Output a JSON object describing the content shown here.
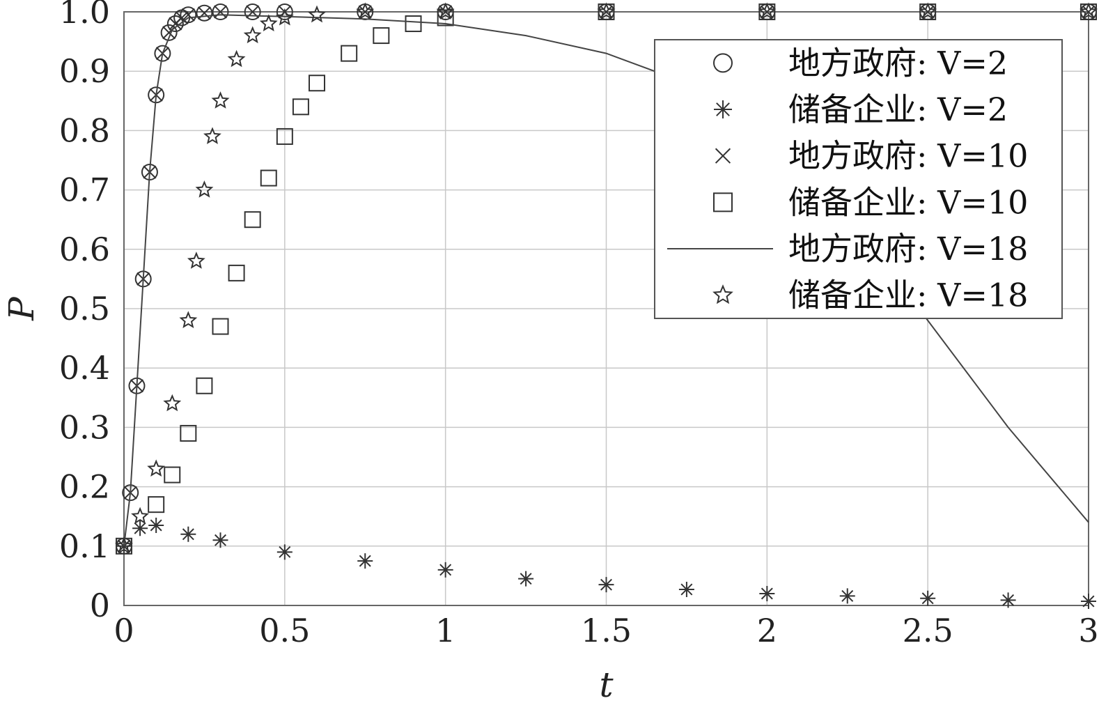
{
  "chart_data": {
    "type": "scatter",
    "xlabel": "t",
    "ylabel": "P",
    "xlim": [
      0,
      3
    ],
    "ylim": [
      0,
      1.0
    ],
    "xticks": [
      0,
      0.5,
      1,
      1.5,
      2,
      2.5,
      3
    ],
    "xtick_labels": [
      "0",
      "0.5",
      "1",
      "1.5",
      "2",
      "2.5",
      "3"
    ],
    "yticks": [
      0,
      0.1,
      0.2,
      0.3,
      0.4,
      0.5,
      0.6,
      0.7,
      0.8,
      0.9,
      1.0
    ],
    "ytick_labels": [
      "0",
      "0.1",
      "0.2",
      "0.3",
      "0.4",
      "0.5",
      "0.6",
      "0.7",
      "0.8",
      "0.9",
      "1.0"
    ],
    "grid": true,
    "legend_position": "top-right",
    "series": [
      {
        "name": "地方政府: V=2",
        "marker": "circle",
        "x": [
          0,
          0.02,
          0.04,
          0.06,
          0.08,
          0.1,
          0.12,
          0.14,
          0.16,
          0.18,
          0.2,
          0.25,
          0.3,
          0.4,
          0.5,
          0.75,
          1.0,
          1.5,
          2.0,
          2.5,
          3.0
        ],
        "y": [
          0.1,
          0.19,
          0.37,
          0.55,
          0.73,
          0.86,
          0.93,
          0.965,
          0.98,
          0.99,
          0.995,
          0.998,
          1.0,
          1.0,
          1.0,
          1.0,
          1.0,
          1.0,
          1.0,
          1.0,
          1.0
        ]
      },
      {
        "name": "储备企业: V=2",
        "marker": "asterisk",
        "x": [
          0,
          0.05,
          0.1,
          0.2,
          0.3,
          0.5,
          0.75,
          1.0,
          1.25,
          1.5,
          1.75,
          2.0,
          2.25,
          2.5,
          2.75,
          3.0
        ],
        "y": [
          0.1,
          0.13,
          0.135,
          0.12,
          0.11,
          0.09,
          0.075,
          0.06,
          0.045,
          0.035,
          0.027,
          0.02,
          0.016,
          0.012,
          0.009,
          0.007
        ]
      },
      {
        "name": "地方政府: V=10",
        "marker": "x",
        "x": [
          0,
          0.02,
          0.04,
          0.06,
          0.08,
          0.1,
          0.12,
          0.14,
          0.16,
          0.18,
          0.2,
          0.25,
          0.3,
          0.4,
          0.5,
          0.75,
          1.0,
          1.5,
          2.0,
          2.5,
          3.0
        ],
        "y": [
          0.1,
          0.19,
          0.37,
          0.55,
          0.73,
          0.86,
          0.93,
          0.965,
          0.98,
          0.99,
          0.995,
          0.998,
          1.0,
          1.0,
          1.0,
          1.0,
          1.0,
          1.0,
          1.0,
          1.0,
          1.0
        ]
      },
      {
        "name": "储备企业: V=10",
        "marker": "square",
        "x": [
          0,
          0.1,
          0.15,
          0.2,
          0.25,
          0.3,
          0.35,
          0.4,
          0.45,
          0.5,
          0.55,
          0.6,
          0.7,
          0.8,
          0.9,
          1.0,
          1.5,
          2.0,
          2.5,
          3.0
        ],
        "y": [
          0.1,
          0.17,
          0.22,
          0.29,
          0.37,
          0.47,
          0.56,
          0.65,
          0.72,
          0.79,
          0.84,
          0.88,
          0.93,
          0.96,
          0.98,
          0.99,
          1.0,
          1.0,
          1.0,
          1.0
        ]
      },
      {
        "name": "地方政府: V=18",
        "marker": "line",
        "x": [
          0,
          0.02,
          0.04,
          0.06,
          0.08,
          0.1,
          0.12,
          0.15,
          0.2,
          0.3,
          0.5,
          0.75,
          1.0,
          1.25,
          1.5,
          1.75,
          2.0,
          2.25,
          2.5,
          2.75,
          3.0
        ],
        "y": [
          0.1,
          0.19,
          0.37,
          0.55,
          0.73,
          0.86,
          0.93,
          0.97,
          0.99,
          0.995,
          0.992,
          0.988,
          0.98,
          0.96,
          0.93,
          0.88,
          0.8,
          0.66,
          0.48,
          0.3,
          0.14
        ]
      },
      {
        "name": "储备企业: V=18",
        "marker": "star",
        "x": [
          0,
          0.05,
          0.1,
          0.15,
          0.2,
          0.225,
          0.25,
          0.275,
          0.3,
          0.35,
          0.4,
          0.45,
          0.5,
          0.6,
          0.75,
          1.0,
          1.5,
          2.0,
          2.5,
          3.0
        ],
        "y": [
          0.1,
          0.15,
          0.23,
          0.34,
          0.48,
          0.58,
          0.7,
          0.79,
          0.85,
          0.92,
          0.96,
          0.98,
          0.99,
          0.995,
          1.0,
          1.0,
          1.0,
          1.0,
          1.0,
          1.0
        ]
      }
    ]
  }
}
